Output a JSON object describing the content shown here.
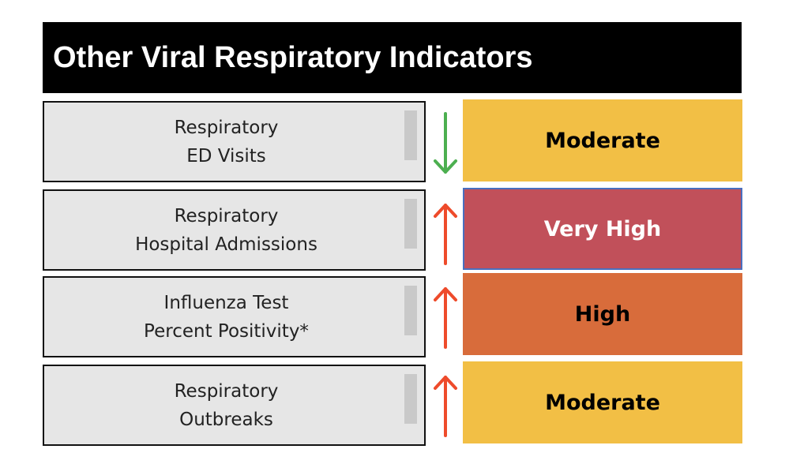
{
  "title": "Other Viral Respiratory Indicators",
  "indicators": [
    {
      "line1": "Respiratory",
      "line2": "ED Visits",
      "trend": "down",
      "trend_icon": "arrow-down-icon",
      "trend_color": "#4caf50",
      "status": "Moderate",
      "status_bg": "#f2bf45",
      "status_fg": "#000000"
    },
    {
      "line1": "Respiratory",
      "line2": "Hospital Admissions",
      "trend": "up",
      "trend_icon": "arrow-up-icon",
      "trend_color": "#ee4b2b",
      "status": "Very High",
      "status_bg": "#c1505a",
      "status_fg": "#ffffff"
    },
    {
      "line1": "Influenza Test",
      "line2": "Percent Positivity*",
      "trend": "up",
      "trend_icon": "arrow-up-icon",
      "trend_color": "#ee4b2b",
      "status": "High",
      "status_bg": "#d86c3b",
      "status_fg": "#000000"
    },
    {
      "line1": "Respiratory",
      "line2": "Outbreaks",
      "trend": "up",
      "trend_icon": "arrow-up-icon",
      "trend_color": "#ee4b2b",
      "status": "Moderate",
      "status_bg": "#f2bf45",
      "status_fg": "#000000"
    }
  ]
}
